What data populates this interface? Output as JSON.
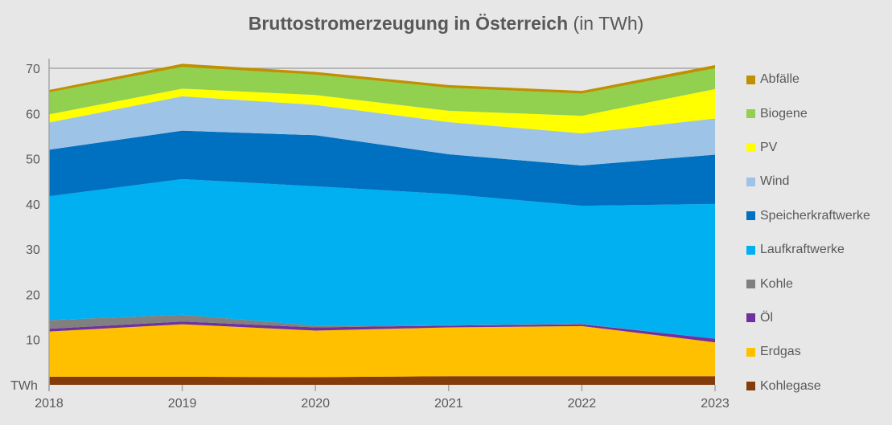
{
  "chart_data": {
    "type": "area",
    "stacked": true,
    "title": "Bruttostromerzeugung in Österreich",
    "title_suffix": "(in TWh)",
    "ylabel": "TWh",
    "ylim": [
      0,
      70
    ],
    "yticks": [
      10,
      20,
      30,
      40,
      50,
      60,
      70
    ],
    "grid": "top line only",
    "legend": "right",
    "x": [
      "2018",
      "2019",
      "2020",
      "2021",
      "2022",
      "2023"
    ],
    "series": [
      {
        "name": "Kohlegase",
        "color": "#843c0c",
        "values": [
          1.8,
          1.8,
          1.7,
          1.9,
          1.9,
          1.9
        ]
      },
      {
        "name": "Erdgas",
        "color": "#ffc000",
        "values": [
          10.0,
          11.6,
          10.3,
          10.8,
          11.1,
          7.5
        ]
      },
      {
        "name": "Öl",
        "color": "#7030a0",
        "values": [
          0.6,
          0.6,
          0.7,
          0.4,
          0.4,
          0.8
        ]
      },
      {
        "name": "Kohle",
        "color": "#808080",
        "values": [
          1.9,
          1.5,
          0.4,
          0.1,
          0.1,
          0.0
        ]
      },
      {
        "name": "Laufkraftwerke",
        "color": "#00b0f0",
        "values": [
          27.4,
          30.0,
          30.8,
          29.0,
          26.1,
          29.8
        ]
      },
      {
        "name": "Speicherkraftwerke",
        "color": "#0070c0",
        "values": [
          10.3,
          10.7,
          11.3,
          8.8,
          8.9,
          10.9
        ]
      },
      {
        "name": "Wind",
        "color": "#9dc3e6",
        "values": [
          6.0,
          7.6,
          6.7,
          7.1,
          7.1,
          8.0
        ]
      },
      {
        "name": "PV",
        "color": "#ffff00",
        "values": [
          1.8,
          1.7,
          2.2,
          2.5,
          3.9,
          6.5
        ]
      },
      {
        "name": "Biogene",
        "color": "#92d050",
        "values": [
          4.9,
          4.8,
          4.5,
          5.1,
          4.9,
          4.6
        ]
      },
      {
        "name": "Abfälle",
        "color": "#bf9000",
        "values": [
          0.5,
          0.7,
          0.6,
          0.6,
          0.6,
          0.7
        ]
      }
    ]
  }
}
